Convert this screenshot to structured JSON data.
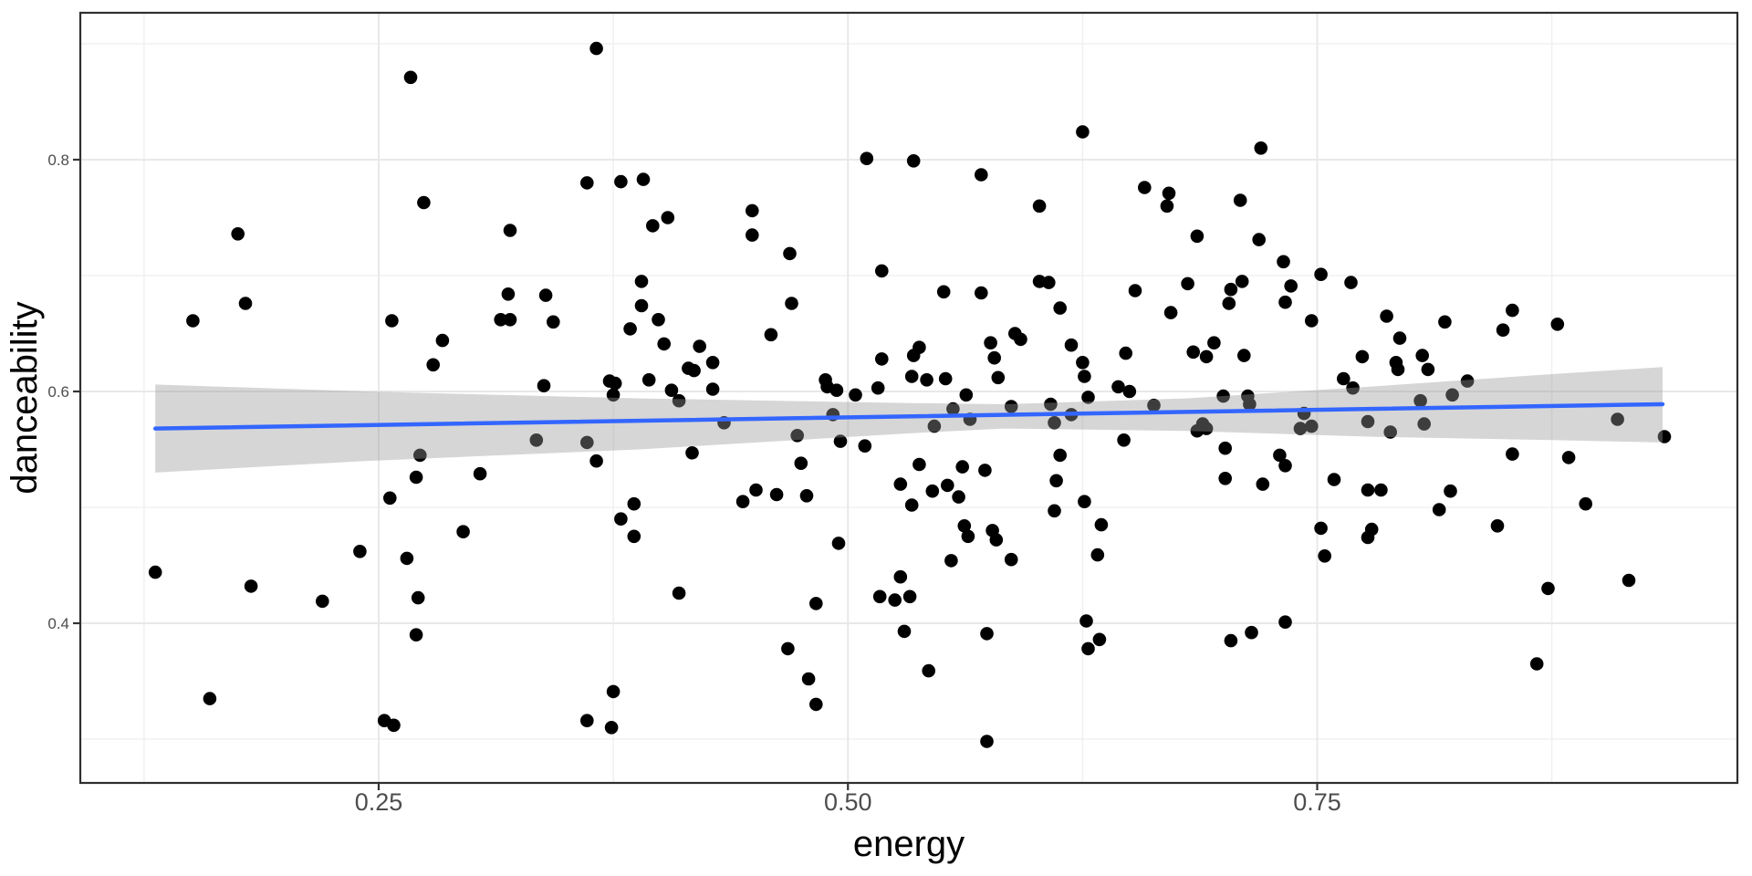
{
  "chart_data": {
    "type": "scatter",
    "title": "",
    "xlabel": "energy",
    "ylabel": "danceability",
    "x_ticks": {
      "values": [
        0.25,
        0.5,
        0.75
      ],
      "labels": [
        "0.25",
        "0.50",
        "0.75"
      ]
    },
    "y_ticks": {
      "values": [
        0.4,
        0.6,
        0.8
      ],
      "labels": [
        "0.4",
        "0.6",
        "0.8"
      ]
    },
    "x_minor": [
      0.125,
      0.375,
      0.625,
      0.875
    ],
    "y_minor": [
      0.3,
      0.5,
      0.7,
      0.9
    ],
    "xlim": [
      0.091,
      0.974
    ],
    "ylim": [
      0.262,
      0.927
    ],
    "grid": "on",
    "legend": "none",
    "colors": {
      "point": "#000000",
      "smooth_line": "#3366FF",
      "ci_band": "rgba(153,153,153,0.4)",
      "panel_border": "#2f2f2f",
      "grid_major": "#e8e8e8",
      "grid_minor": "#f0f0f0",
      "tick_mark": "#333333",
      "tick_text": "#4d4d4d",
      "axis_title": "#000000"
    },
    "smooth": {
      "line_x": [
        0.131,
        0.934
      ],
      "line_y": [
        0.568,
        0.589
      ],
      "band_x": [
        0.131,
        0.243,
        0.389,
        0.534,
        0.583,
        0.68,
        0.777,
        0.875,
        0.934
      ],
      "band_top": [
        0.606,
        0.6,
        0.594,
        0.59,
        0.589,
        0.594,
        0.604,
        0.615,
        0.621
      ],
      "band_bottom": [
        0.53,
        0.54,
        0.55,
        0.564,
        0.568,
        0.566,
        0.561,
        0.558,
        0.556
      ]
    },
    "points": [
      [
        0.267,
        0.871
      ],
      [
        0.274,
        0.763
      ],
      [
        0.175,
        0.736
      ],
      [
        0.179,
        0.676
      ],
      [
        0.151,
        0.661
      ],
      [
        0.257,
        0.661
      ],
      [
        0.284,
        0.644
      ],
      [
        0.279,
        0.623
      ],
      [
        0.131,
        0.444
      ],
      [
        0.272,
        0.545
      ],
      [
        0.27,
        0.526
      ],
      [
        0.256,
        0.508
      ],
      [
        0.304,
        0.529
      ],
      [
        0.295,
        0.479
      ],
      [
        0.24,
        0.462
      ],
      [
        0.265,
        0.456
      ],
      [
        0.182,
        0.432
      ],
      [
        0.22,
        0.419
      ],
      [
        0.271,
        0.422
      ],
      [
        0.27,
        0.39
      ],
      [
        0.16,
        0.335
      ],
      [
        0.253,
        0.316
      ],
      [
        0.258,
        0.312
      ],
      [
        0.366,
        0.896
      ],
      [
        0.361,
        0.78
      ],
      [
        0.379,
        0.781
      ],
      [
        0.391,
        0.783
      ],
      [
        0.32,
        0.739
      ],
      [
        0.396,
        0.743
      ],
      [
        0.404,
        0.75
      ],
      [
        0.449,
        0.756
      ],
      [
        0.449,
        0.735
      ],
      [
        0.469,
        0.719
      ],
      [
        0.51,
        0.801
      ],
      [
        0.535,
        0.799
      ],
      [
        0.518,
        0.704
      ],
      [
        0.319,
        0.684
      ],
      [
        0.339,
        0.683
      ],
      [
        0.315,
        0.662
      ],
      [
        0.32,
        0.662
      ],
      [
        0.343,
        0.66
      ],
      [
        0.39,
        0.695
      ],
      [
        0.39,
        0.674
      ],
      [
        0.399,
        0.662
      ],
      [
        0.384,
        0.654
      ],
      [
        0.47,
        0.676
      ],
      [
        0.459,
        0.649
      ],
      [
        0.402,
        0.641
      ],
      [
        0.421,
        0.639
      ],
      [
        0.415,
        0.62
      ],
      [
        0.418,
        0.618
      ],
      [
        0.428,
        0.625
      ],
      [
        0.428,
        0.602
      ],
      [
        0.394,
        0.61
      ],
      [
        0.338,
        0.605
      ],
      [
        0.373,
        0.609
      ],
      [
        0.376,
        0.607
      ],
      [
        0.375,
        0.597
      ],
      [
        0.406,
        0.601
      ],
      [
        0.41,
        0.592
      ],
      [
        0.488,
        0.61
      ],
      [
        0.489,
        0.604
      ],
      [
        0.494,
        0.601
      ],
      [
        0.504,
        0.597
      ],
      [
        0.518,
        0.628
      ],
      [
        0.535,
        0.631
      ],
      [
        0.534,
        0.613
      ],
      [
        0.516,
        0.603
      ],
      [
        0.434,
        0.573
      ],
      [
        0.492,
        0.58
      ],
      [
        0.473,
        0.562
      ],
      [
        0.334,
        0.558
      ],
      [
        0.361,
        0.556
      ],
      [
        0.366,
        0.54
      ],
      [
        0.417,
        0.547
      ],
      [
        0.496,
        0.557
      ],
      [
        0.509,
        0.553
      ],
      [
        0.475,
        0.538
      ],
      [
        0.478,
        0.51
      ],
      [
        0.462,
        0.511
      ],
      [
        0.451,
        0.515
      ],
      [
        0.444,
        0.505
      ],
      [
        0.386,
        0.503
      ],
      [
        0.379,
        0.49
      ],
      [
        0.386,
        0.475
      ],
      [
        0.495,
        0.469
      ],
      [
        0.41,
        0.426
      ],
      [
        0.483,
        0.417
      ],
      [
        0.528,
        0.52
      ],
      [
        0.534,
        0.502
      ],
      [
        0.528,
        0.44
      ],
      [
        0.517,
        0.423
      ],
      [
        0.525,
        0.42
      ],
      [
        0.533,
        0.423
      ],
      [
        0.53,
        0.393
      ],
      [
        0.468,
        0.378
      ],
      [
        0.479,
        0.352
      ],
      [
        0.483,
        0.33
      ],
      [
        0.375,
        0.341
      ],
      [
        0.361,
        0.316
      ],
      [
        0.374,
        0.31
      ],
      [
        0.625,
        0.824
      ],
      [
        0.72,
        0.81
      ],
      [
        0.571,
        0.787
      ],
      [
        0.658,
        0.776
      ],
      [
        0.671,
        0.771
      ],
      [
        0.67,
        0.76
      ],
      [
        0.709,
        0.765
      ],
      [
        0.602,
        0.76
      ],
      [
        0.686,
        0.734
      ],
      [
        0.719,
        0.731
      ],
      [
        0.732,
        0.712
      ],
      [
        0.752,
        0.701
      ],
      [
        0.602,
        0.695
      ],
      [
        0.607,
        0.694
      ],
      [
        0.551,
        0.686
      ],
      [
        0.571,
        0.685
      ],
      [
        0.653,
        0.687
      ],
      [
        0.681,
        0.693
      ],
      [
        0.704,
        0.688
      ],
      [
        0.71,
        0.695
      ],
      [
        0.736,
        0.691
      ],
      [
        0.703,
        0.676
      ],
      [
        0.733,
        0.677
      ],
      [
        0.613,
        0.672
      ],
      [
        0.672,
        0.668
      ],
      [
        0.747,
        0.661
      ],
      [
        0.589,
        0.65
      ],
      [
        0.592,
        0.645
      ],
      [
        0.576,
        0.642
      ],
      [
        0.619,
        0.64
      ],
      [
        0.578,
        0.629
      ],
      [
        0.648,
        0.633
      ],
      [
        0.684,
        0.634
      ],
      [
        0.691,
        0.63
      ],
      [
        0.695,
        0.642
      ],
      [
        0.711,
        0.631
      ],
      [
        0.538,
        0.638
      ],
      [
        0.542,
        0.61
      ],
      [
        0.552,
        0.611
      ],
      [
        0.58,
        0.612
      ],
      [
        0.625,
        0.625
      ],
      [
        0.626,
        0.613
      ],
      [
        0.644,
        0.604
      ],
      [
        0.65,
        0.6
      ],
      [
        0.563,
        0.597
      ],
      [
        0.7,
        0.596
      ],
      [
        0.713,
        0.596
      ],
      [
        0.556,
        0.585
      ],
      [
        0.565,
        0.576
      ],
      [
        0.546,
        0.57
      ],
      [
        0.587,
        0.587
      ],
      [
        0.608,
        0.589
      ],
      [
        0.619,
        0.58
      ],
      [
        0.61,
        0.573
      ],
      [
        0.628,
        0.595
      ],
      [
        0.663,
        0.588
      ],
      [
        0.714,
        0.589
      ],
      [
        0.689,
        0.572
      ],
      [
        0.691,
        0.568
      ],
      [
        0.686,
        0.566
      ],
      [
        0.741,
        0.568
      ],
      [
        0.747,
        0.57
      ],
      [
        0.743,
        0.581
      ],
      [
        0.647,
        0.558
      ],
      [
        0.701,
        0.551
      ],
      [
        0.73,
        0.545
      ],
      [
        0.733,
        0.536
      ],
      [
        0.613,
        0.545
      ],
      [
        0.561,
        0.535
      ],
      [
        0.573,
        0.532
      ],
      [
        0.538,
        0.537
      ],
      [
        0.545,
        0.514
      ],
      [
        0.553,
        0.519
      ],
      [
        0.559,
        0.509
      ],
      [
        0.611,
        0.523
      ],
      [
        0.701,
        0.525
      ],
      [
        0.721,
        0.52
      ],
      [
        0.759,
        0.524
      ],
      [
        0.626,
        0.505
      ],
      [
        0.61,
        0.497
      ],
      [
        0.562,
        0.484
      ],
      [
        0.564,
        0.475
      ],
      [
        0.577,
        0.48
      ],
      [
        0.579,
        0.472
      ],
      [
        0.635,
        0.485
      ],
      [
        0.555,
        0.454
      ],
      [
        0.587,
        0.455
      ],
      [
        0.633,
        0.459
      ],
      [
        0.752,
        0.482
      ],
      [
        0.754,
        0.458
      ],
      [
        0.627,
        0.402
      ],
      [
        0.733,
        0.401
      ],
      [
        0.574,
        0.391
      ],
      [
        0.634,
        0.386
      ],
      [
        0.628,
        0.378
      ],
      [
        0.704,
        0.385
      ],
      [
        0.715,
        0.392
      ],
      [
        0.543,
        0.359
      ],
      [
        0.574,
        0.298
      ],
      [
        0.768,
        0.694
      ],
      [
        0.787,
        0.665
      ],
      [
        0.794,
        0.646
      ],
      [
        0.818,
        0.66
      ],
      [
        0.854,
        0.67
      ],
      [
        0.849,
        0.653
      ],
      [
        0.878,
        0.658
      ],
      [
        0.774,
        0.63
      ],
      [
        0.806,
        0.631
      ],
      [
        0.792,
        0.625
      ],
      [
        0.793,
        0.619
      ],
      [
        0.809,
        0.619
      ],
      [
        0.764,
        0.611
      ],
      [
        0.769,
        0.603
      ],
      [
        0.83,
        0.609
      ],
      [
        0.822,
        0.597
      ],
      [
        0.805,
        0.592
      ],
      [
        0.777,
        0.574
      ],
      [
        0.807,
        0.572
      ],
      [
        0.789,
        0.565
      ],
      [
        0.854,
        0.546
      ],
      [
        0.777,
        0.515
      ],
      [
        0.784,
        0.515
      ],
      [
        0.821,
        0.514
      ],
      [
        0.815,
        0.498
      ],
      [
        0.846,
        0.484
      ],
      [
        0.779,
        0.481
      ],
      [
        0.777,
        0.474
      ],
      [
        0.867,
        0.365
      ],
      [
        0.91,
        0.576
      ],
      [
        0.935,
        0.561
      ],
      [
        0.884,
        0.543
      ],
      [
        0.893,
        0.503
      ],
      [
        0.916,
        0.437
      ],
      [
        0.873,
        0.43
      ]
    ]
  }
}
